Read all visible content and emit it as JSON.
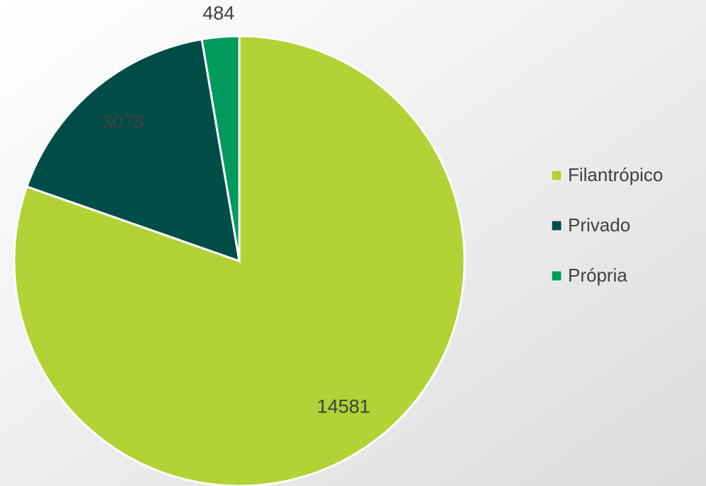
{
  "chart_data": {
    "type": "pie",
    "categories": [
      "Filantrópico",
      "Privado",
      "Própria"
    ],
    "values": [
      14581,
      3078,
      484
    ],
    "colors": [
      "#b2d235",
      "#004d48",
      "#009a5e"
    ],
    "legend": "right"
  }
}
